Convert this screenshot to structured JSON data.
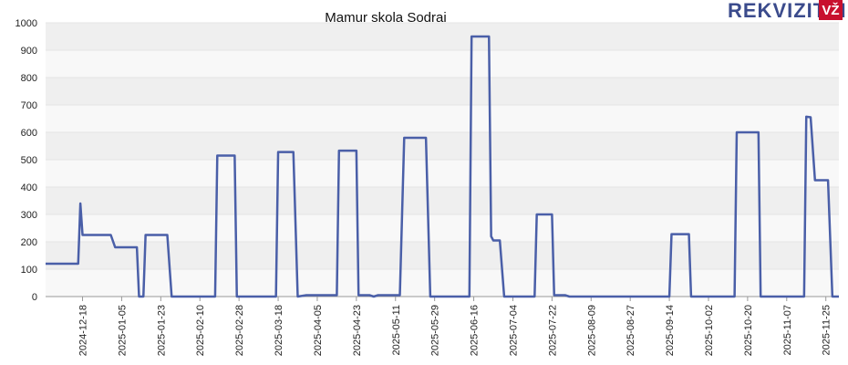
{
  "brand": {
    "name": "REKVIZITAI",
    "badge": "VŽ"
  },
  "chart_data": {
    "type": "line",
    "title": "Mamur skola Sodrai",
    "x": [
      "2024-12-01",
      "2024-12-16",
      "2024-12-17",
      "2024-12-18",
      "2024-12-31",
      "2025-01-02",
      "2025-01-12",
      "2025-01-13",
      "2025-01-15",
      "2025-01-16",
      "2025-01-26",
      "2025-01-28",
      "2025-02-17",
      "2025-02-18",
      "2025-02-26",
      "2025-02-27",
      "2025-03-17",
      "2025-03-18",
      "2025-03-25",
      "2025-03-27",
      "2025-03-31",
      "2025-04-14",
      "2025-04-15",
      "2025-04-23",
      "2025-04-24",
      "2025-04-29",
      "2025-05-01",
      "2025-05-03",
      "2025-05-13",
      "2025-05-15",
      "2025-05-25",
      "2025-05-27",
      "2025-06-14",
      "2025-06-15",
      "2025-06-23",
      "2025-06-24",
      "2025-06-25",
      "2025-06-28",
      "2025-06-30",
      "2025-07-14",
      "2025-07-15",
      "2025-07-22",
      "2025-07-23",
      "2025-07-28",
      "2025-07-30",
      "2025-09-14",
      "2025-09-15",
      "2025-09-23",
      "2025-09-24",
      "2025-10-14",
      "2025-10-15",
      "2025-10-25",
      "2025-10-26",
      "2025-11-15",
      "2025-11-16",
      "2025-11-18",
      "2025-11-20",
      "2025-11-26",
      "2025-11-28",
      "2025-12-01"
    ],
    "series": [
      {
        "name": "Mamur skola Sodrai",
        "color": "#4a5fa8",
        "values": [
          120,
          120,
          340,
          225,
          225,
          180,
          180,
          0,
          0,
          225,
          225,
          0,
          0,
          515,
          515,
          0,
          0,
          528,
          528,
          0,
          5,
          5,
          533,
          533,
          5,
          5,
          0,
          5,
          5,
          580,
          580,
          0,
          0,
          950,
          950,
          220,
          205,
          205,
          0,
          0,
          300,
          300,
          5,
          5,
          0,
          0,
          228,
          228,
          0,
          0,
          600,
          600,
          0,
          0,
          657,
          655,
          425,
          425,
          0,
          0
        ]
      }
    ],
    "xlim": [
      "2024-12-01",
      "2025-12-01"
    ],
    "xticks": [
      "2024-12-18",
      "2025-01-05",
      "2025-01-23",
      "2025-02-10",
      "2025-02-28",
      "2025-03-18",
      "2025-04-05",
      "2025-04-23",
      "2025-05-11",
      "2025-05-29",
      "2025-06-16",
      "2025-07-04",
      "2025-07-22",
      "2025-08-09",
      "2025-08-27",
      "2025-09-14",
      "2025-10-02",
      "2025-10-20",
      "2025-11-07",
      "2025-11-25"
    ],
    "ylim": [
      0,
      1000
    ],
    "yticks": [
      0,
      100,
      200,
      300,
      400,
      500,
      600,
      700,
      800,
      900,
      1000
    ],
    "grid": true
  }
}
